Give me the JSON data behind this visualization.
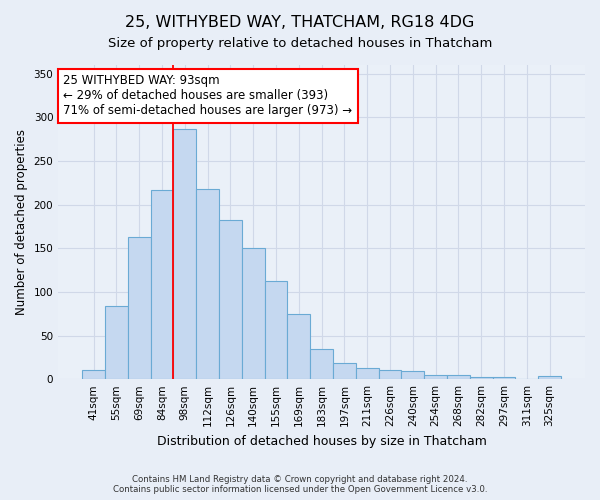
{
  "title": "25, WITHYBED WAY, THATCHAM, RG18 4DG",
  "subtitle": "Size of property relative to detached houses in Thatcham",
  "xlabel": "Distribution of detached houses by size in Thatcham",
  "ylabel": "Number of detached properties",
  "categories": [
    "41sqm",
    "55sqm",
    "69sqm",
    "84sqm",
    "98sqm",
    "112sqm",
    "126sqm",
    "140sqm",
    "155sqm",
    "169sqm",
    "183sqm",
    "197sqm",
    "211sqm",
    "226sqm",
    "240sqm",
    "254sqm",
    "268sqm",
    "282sqm",
    "297sqm",
    "311sqm",
    "325sqm"
  ],
  "values": [
    10,
    84,
    163,
    217,
    287,
    218,
    182,
    150,
    113,
    75,
    35,
    18,
    13,
    11,
    9,
    5,
    5,
    2,
    2,
    0,
    4
  ],
  "bar_color": "#c5d8f0",
  "bar_edge_color": "#6aaad4",
  "bar_edge_width": 0.8,
  "vline_index": 4,
  "vline_color": "red",
  "annotation_text": "25 WITHYBED WAY: 93sqm\n← 29% of detached houses are smaller (393)\n71% of semi-detached houses are larger (973) →",
  "annotation_box_color": "white",
  "annotation_box_edge_color": "red",
  "annotation_fontsize": 8.5,
  "ylim": [
    0,
    360
  ],
  "yticks": [
    0,
    50,
    100,
    150,
    200,
    250,
    300,
    350
  ],
  "title_fontsize": 11.5,
  "subtitle_fontsize": 9.5,
  "xlabel_fontsize": 9,
  "ylabel_fontsize": 8.5,
  "tick_fontsize": 7.5,
  "footer_line1": "Contains HM Land Registry data © Crown copyright and database right 2024.",
  "footer_line2": "Contains public sector information licensed under the Open Government Licence v3.0.",
  "background_color": "#e8eef7",
  "plot_bg_color": "#eaf0f8",
  "grid_color": "#d0d8e8"
}
